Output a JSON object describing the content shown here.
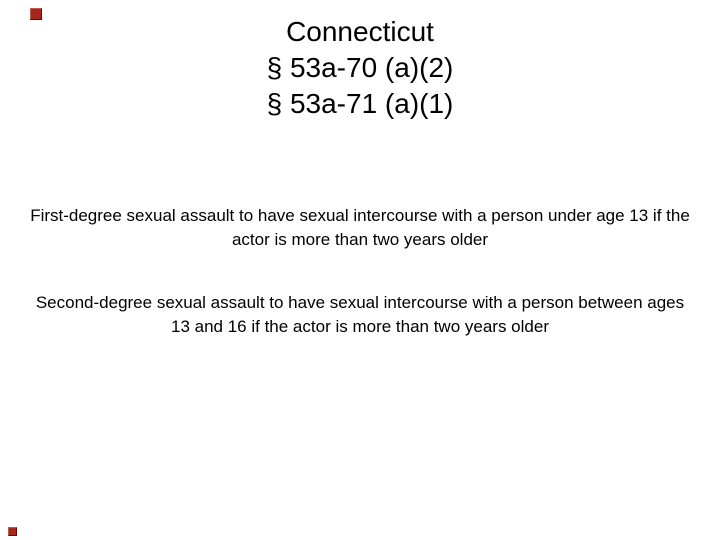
{
  "slide": {
    "title": {
      "line1": "Connecticut",
      "line2": "§ 53a-70 (a)(2)",
      "line3": "§ 53a-71 (a)(1)"
    },
    "body": {
      "paragraph1": "First-degree sexual assault to have sexual intercourse with a person under age 13 if the actor is more than two years older",
      "paragraph2": "Second-degree sexual assault to have sexual intercourse with a person between ages 13 and 16 if the actor is more than two years older"
    },
    "decorations": {
      "nav_button_color": "#a3271a",
      "background_color": "#ffffff",
      "text_color": "#000000"
    }
  }
}
